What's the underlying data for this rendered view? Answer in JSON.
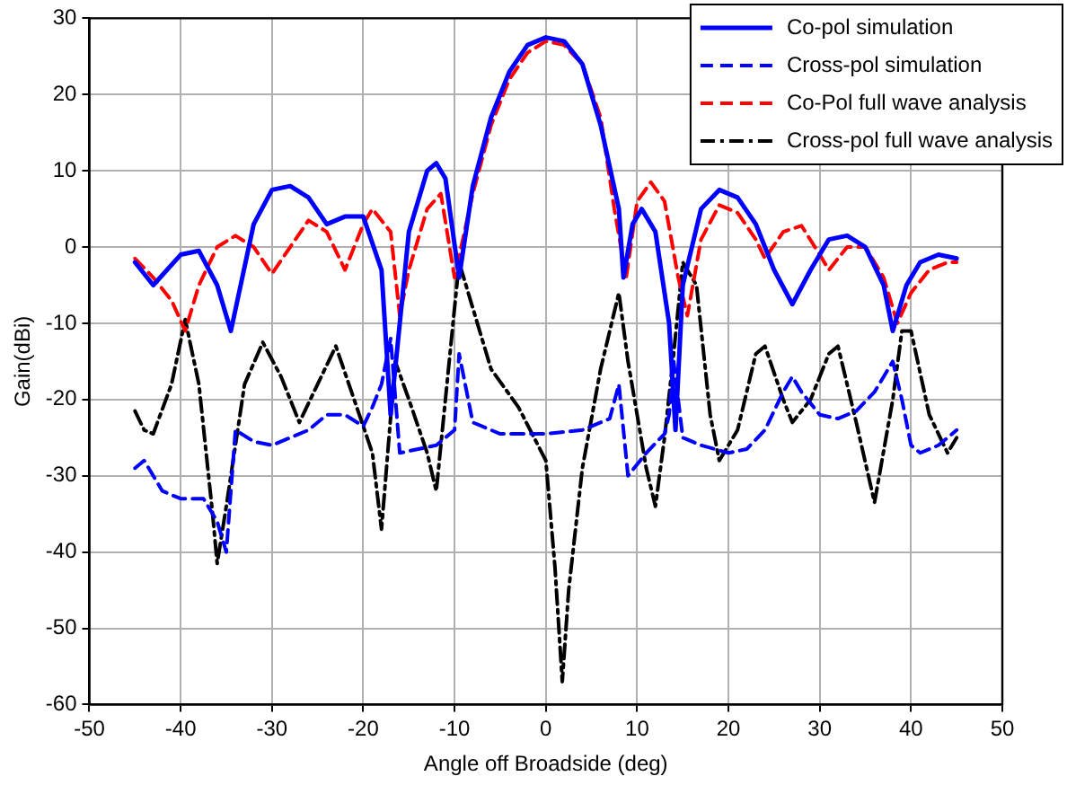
{
  "chart_data": {
    "type": "line",
    "xlabel": "Angle off Broadside (deg)",
    "ylabel": "Gain(dBi)",
    "xlim": [
      -50,
      50
    ],
    "xticks": [
      -50,
      -40,
      -30,
      -20,
      -10,
      0,
      10,
      20,
      30,
      40,
      50
    ],
    "ylim": [
      -60,
      30
    ],
    "yticks": [
      -60,
      -50,
      -40,
      -30,
      -20,
      -10,
      0,
      10,
      20,
      30
    ],
    "grid": true,
    "legend": "top right",
    "marker": "none",
    "series": [
      {
        "name": "Co-pol simulation",
        "color": "#0000ff",
        "line_style": "solid",
        "x": [
          -45,
          -43,
          -40,
          -38,
          -36,
          -34.5,
          -32,
          -30,
          -28,
          -26,
          -24,
          -22,
          -20,
          -18,
          -17,
          -15,
          -13,
          -12,
          -11,
          -9.5,
          -8,
          -6,
          -4,
          -2,
          0,
          2,
          4,
          6,
          8,
          8.5,
          9.5,
          10.5,
          12,
          13.5,
          14.2,
          15,
          17,
          19,
          21,
          23,
          25,
          27,
          29,
          31,
          33,
          35,
          37,
          38,
          39.5,
          41,
          43,
          45
        ],
        "values": [
          -2,
          -5,
          -1,
          -0.5,
          -5,
          -11,
          3,
          7.5,
          8,
          6.5,
          3,
          4,
          4,
          -3,
          -22,
          2,
          10,
          11,
          9,
          -4,
          8,
          17,
          23,
          26.5,
          27.5,
          27,
          24,
          16,
          5,
          -4,
          3,
          5,
          2,
          -10,
          -24,
          -5,
          5,
          7.5,
          6.5,
          3,
          -3,
          -7.5,
          -3,
          1,
          1.5,
          0,
          -5,
          -11,
          -5,
          -2,
          -1,
          -1.5
        ]
      },
      {
        "name": "Cross-pol simulation",
        "color": "#0000ff",
        "line_style": "dashed",
        "x": [
          -45,
          -44,
          -42,
          -40,
          -37.5,
          -36,
          -35,
          -34,
          -32,
          -30,
          -28,
          -26,
          -24,
          -22,
          -20,
          -19,
          -18,
          -17,
          -16,
          -14,
          -12,
          -10,
          -9.5,
          -8,
          -5,
          0,
          4,
          7,
          8,
          9,
          11,
          13,
          13.5,
          14,
          15,
          17,
          20,
          22,
          24,
          26,
          27,
          28,
          30,
          32,
          34,
          36,
          38,
          39,
          40,
          41,
          43,
          45
        ],
        "values": [
          -29,
          -28,
          -32,
          -33,
          -33,
          -36,
          -40,
          -24,
          -25.5,
          -26,
          -25,
          -24,
          -22,
          -22,
          -23.5,
          -21,
          -18,
          -12,
          -27,
          -26.5,
          -26,
          -24,
          -14,
          -23,
          -24.5,
          -24.5,
          -24,
          -22.5,
          -18,
          -30,
          -27,
          -24.5,
          -22,
          -15,
          -25,
          -26,
          -27,
          -26.5,
          -24,
          -19,
          -17,
          -19,
          -22,
          -22.5,
          -21.5,
          -19,
          -15,
          -20,
          -26,
          -27,
          -26,
          -24
        ]
      },
      {
        "name": "Co-Pol full wave analysis",
        "color": "#ff0000",
        "line_style": "dashed",
        "x": [
          -45,
          -43,
          -41,
          -39.5,
          -38,
          -36,
          -34,
          -32,
          -30,
          -28,
          -26,
          -24,
          -22,
          -20,
          -19,
          -17,
          -16,
          -15,
          -13,
          -11.5,
          -10,
          -8,
          -6,
          -4,
          -2,
          0,
          2,
          4,
          6,
          7.5,
          8.8,
          10,
          11.5,
          13,
          14.5,
          15.5,
          17,
          19,
          21,
          23,
          24,
          26,
          28,
          30,
          31,
          33,
          35,
          37,
          38.5,
          40,
          42,
          44,
          45
        ],
        "values": [
          -1.5,
          -4,
          -7,
          -11,
          -5,
          0,
          1.5,
          0,
          -3.5,
          0,
          3.5,
          2,
          -3,
          3,
          5,
          2,
          -9,
          -3,
          5,
          7,
          -4,
          7,
          16,
          22,
          25.5,
          27,
          26.5,
          24,
          17,
          5,
          -4,
          6,
          8.5,
          6,
          -4,
          -9,
          1,
          5.5,
          4.5,
          1,
          -1.5,
          2,
          2.8,
          -1,
          -3,
          0,
          0,
          -4,
          -10,
          -6,
          -3,
          -2,
          -2
        ]
      },
      {
        "name": "Cross-pol full wave analysis",
        "color": "#000000",
        "line_style": "dashdot",
        "x": [
          -45,
          -44,
          -43,
          -41,
          -39.5,
          -38,
          -36.5,
          -36,
          -35,
          -33,
          -31,
          -29,
          -27,
          -25,
          -23,
          -21,
          -19,
          -18,
          -16.5,
          -15,
          -13,
          -12,
          -11,
          -9.5,
          -8,
          -6,
          -3,
          0,
          1,
          1.8,
          2.5,
          4,
          6,
          8,
          9,
          11,
          12,
          13,
          14,
          15,
          16.5,
          18,
          19,
          21,
          23,
          24,
          26,
          27,
          29,
          31,
          32,
          34,
          36,
          38,
          39,
          40,
          42,
          44,
          45
        ],
        "values": [
          -21.5,
          -24,
          -24.5,
          -18,
          -9.5,
          -18,
          -35,
          -41.5,
          -34,
          -18,
          -12.5,
          -17,
          -23,
          -18,
          -13,
          -20,
          -27,
          -37,
          -15,
          -20,
          -27,
          -32,
          -20,
          -2,
          -8,
          -16,
          -21,
          -28,
          -42,
          -57,
          -45,
          -29,
          -16,
          -6,
          -15,
          -29,
          -34,
          -25,
          -14,
          -2,
          -5,
          -22,
          -28,
          -24,
          -14,
          -13,
          -20,
          -23,
          -20,
          -14,
          -13,
          -23,
          -33.5,
          -20,
          -11,
          -11,
          -22,
          -27,
          -25
        ]
      }
    ]
  }
}
